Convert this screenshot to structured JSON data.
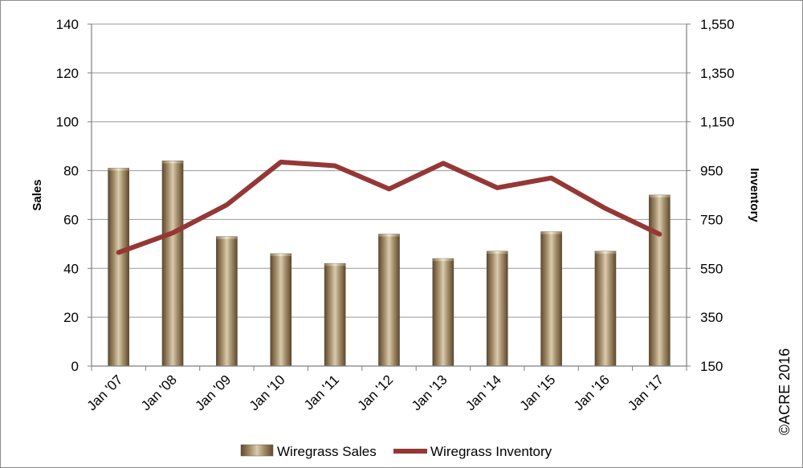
{
  "chart_data": {
    "type": "bar+line",
    "categories": [
      "Jan '07",
      "Jan '08",
      "Jan '09",
      "Jan '10",
      "Jan '11",
      "Jan '12",
      "Jan '13",
      "Jan '14",
      "Jan '15",
      "Jan '16",
      "Jan '17"
    ],
    "series": [
      {
        "name": "Wiregrass Sales",
        "type": "bar",
        "axis": "left",
        "color": "#a89472",
        "values": [
          81,
          84,
          53,
          46,
          42,
          54,
          44,
          47,
          55,
          47,
          70
        ]
      },
      {
        "name": "Wiregrass Inventory",
        "type": "line",
        "axis": "right",
        "color": "#953735",
        "values": [
          615,
          695,
          810,
          985,
          970,
          875,
          980,
          880,
          920,
          795,
          690
        ]
      }
    ],
    "ylabel": "Sales",
    "y2label": "Inventory",
    "ylim": [
      0,
      140
    ],
    "y2lim": [
      150,
      1550
    ],
    "yticks": [
      "0",
      "20",
      "40",
      "60",
      "80",
      "100",
      "120",
      "140"
    ],
    "y2ticks": [
      "150",
      "350",
      "550",
      "750",
      "950",
      "1,150",
      "1,350",
      "1,550"
    ],
    "grid": true,
    "legend_position": "bottom",
    "copyright": "©ACRE 2016"
  }
}
